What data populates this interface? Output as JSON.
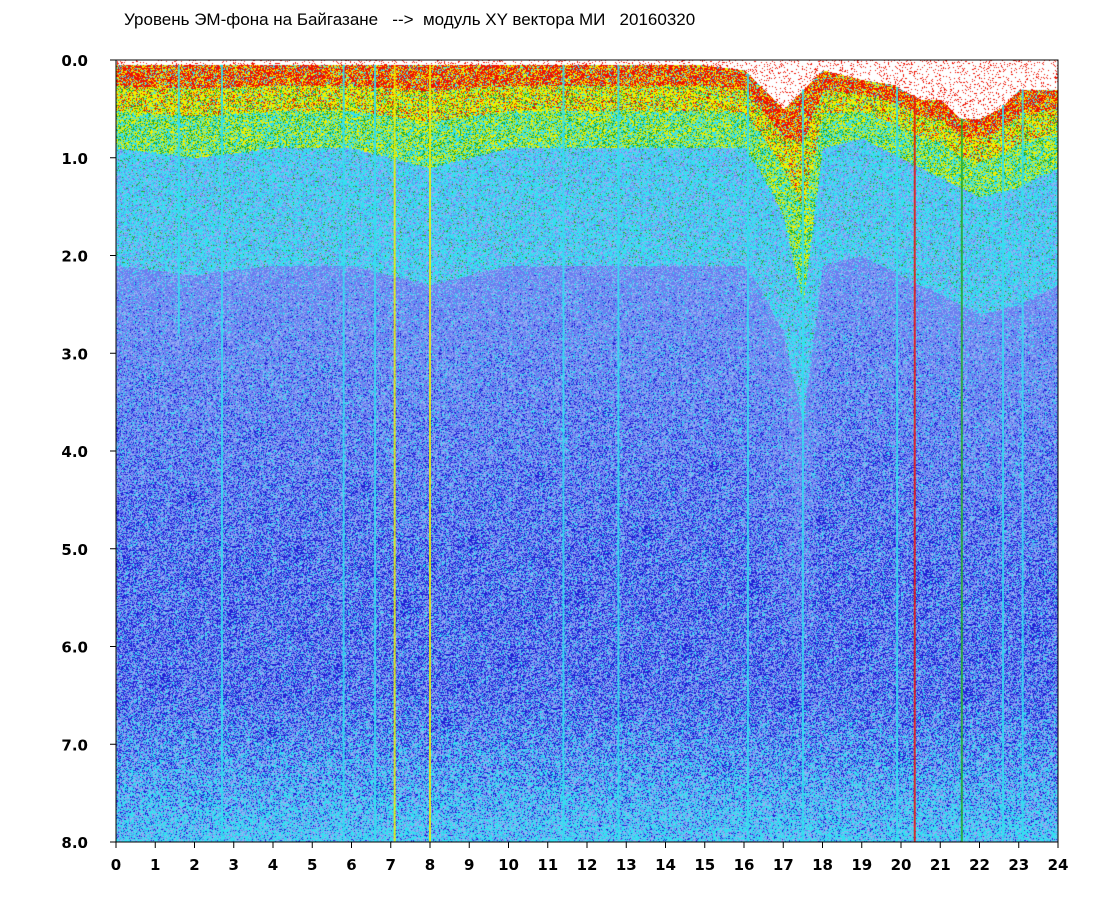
{
  "chart_data": {
    "type": "heatmap",
    "title": "Уровень ЭМ-фона на Байгазане   -->  модуль XY вектора МИ   20160320",
    "x_ticks": [
      "0",
      "1",
      "2",
      "3",
      "4",
      "5",
      "6",
      "7",
      "8",
      "9",
      "10",
      "11",
      "12",
      "13",
      "14",
      "15",
      "16",
      "17",
      "18",
      "19",
      "20",
      "21",
      "22",
      "23",
      "24"
    ],
    "y_ticks": [
      "0.0",
      "1.0",
      "2.0",
      "3.0",
      "4.0",
      "5.0",
      "6.0",
      "7.0",
      "8.0"
    ],
    "xlim": [
      0,
      24
    ],
    "ylim": [
      0,
      8
    ],
    "y_inverted": true,
    "grid": false,
    "colors": {
      "scale_low": "#1f1fd6",
      "scale_mid_low": "#6a7ef0",
      "scale_mid": "#33e0f0",
      "scale_mid_high": "#22aa22",
      "scale_high": "#f0f000",
      "scale_top": "#ee1100"
    },
    "envelope_top_level": [
      [
        0,
        0.05
      ],
      [
        1,
        0.05
      ],
      [
        2,
        0.05
      ],
      [
        3,
        0.05
      ],
      [
        4,
        0.05
      ],
      [
        5,
        0.05
      ],
      [
        6,
        0.05
      ],
      [
        7,
        0.05
      ],
      [
        8,
        0.05
      ],
      [
        9,
        0.05
      ],
      [
        10,
        0.05
      ],
      [
        11,
        0.05
      ],
      [
        12,
        0.05
      ],
      [
        13,
        0.05
      ],
      [
        14,
        0.05
      ],
      [
        15,
        0.05
      ],
      [
        16,
        0.1
      ],
      [
        16.5,
        0.3
      ],
      [
        17,
        0.5
      ],
      [
        17.5,
        0.3
      ],
      [
        18,
        0.1
      ],
      [
        19,
        0.2
      ],
      [
        19.8,
        0.25
      ],
      [
        20,
        0.3
      ],
      [
        20.5,
        0.4
      ],
      [
        21,
        0.4
      ],
      [
        21.5,
        0.6
      ],
      [
        22,
        0.6
      ],
      [
        22.5,
        0.5
      ],
      [
        23,
        0.3
      ],
      [
        24,
        0.3
      ]
    ],
    "warm_band_bottom_level": [
      [
        0,
        0.9
      ],
      [
        2,
        1.0
      ],
      [
        4,
        0.9
      ],
      [
        6,
        0.9
      ],
      [
        8,
        1.1
      ],
      [
        10,
        0.9
      ],
      [
        12,
        0.9
      ],
      [
        14,
        0.9
      ],
      [
        16,
        0.9
      ],
      [
        16.5,
        1.2
      ],
      [
        17,
        1.6
      ],
      [
        17.5,
        2.5
      ],
      [
        18,
        0.9
      ],
      [
        19,
        0.8
      ],
      [
        20,
        1.0
      ],
      [
        21,
        1.2
      ],
      [
        22,
        1.4
      ],
      [
        23,
        1.3
      ],
      [
        24,
        1.1
      ]
    ],
    "vertical_spikes": [
      {
        "x": 1.6,
        "reach": 2.8,
        "color": "#33e0f0"
      },
      {
        "x": 2.7,
        "reach": 8.0,
        "color": "#33e0f0"
      },
      {
        "x": 5.8,
        "reach": 8.0,
        "color": "#33e0f0"
      },
      {
        "x": 6.6,
        "reach": 8.0,
        "color": "#33e0f0"
      },
      {
        "x": 7.1,
        "reach": 8.0,
        "color": "#f0f000"
      },
      {
        "x": 8.0,
        "reach": 8.0,
        "color": "#f0f000"
      },
      {
        "x": 11.4,
        "reach": 8.0,
        "color": "#33e0f0"
      },
      {
        "x": 12.8,
        "reach": 8.0,
        "color": "#33e0f0"
      },
      {
        "x": 16.1,
        "reach": 8.0,
        "color": "#33e0f0"
      },
      {
        "x": 17.5,
        "reach": 8.0,
        "color": "#33e0f0"
      },
      {
        "x": 19.9,
        "reach": 8.0,
        "color": "#33e0f0"
      },
      {
        "x": 20.35,
        "reach": 8.0,
        "color": "#ee1100"
      },
      {
        "x": 21.55,
        "reach": 8.0,
        "color": "#22aa22"
      },
      {
        "x": 22.6,
        "reach": 8.0,
        "color": "#33e0f0"
      },
      {
        "x": 23.1,
        "reach": 8.0,
        "color": "#33e0f0"
      }
    ]
  }
}
